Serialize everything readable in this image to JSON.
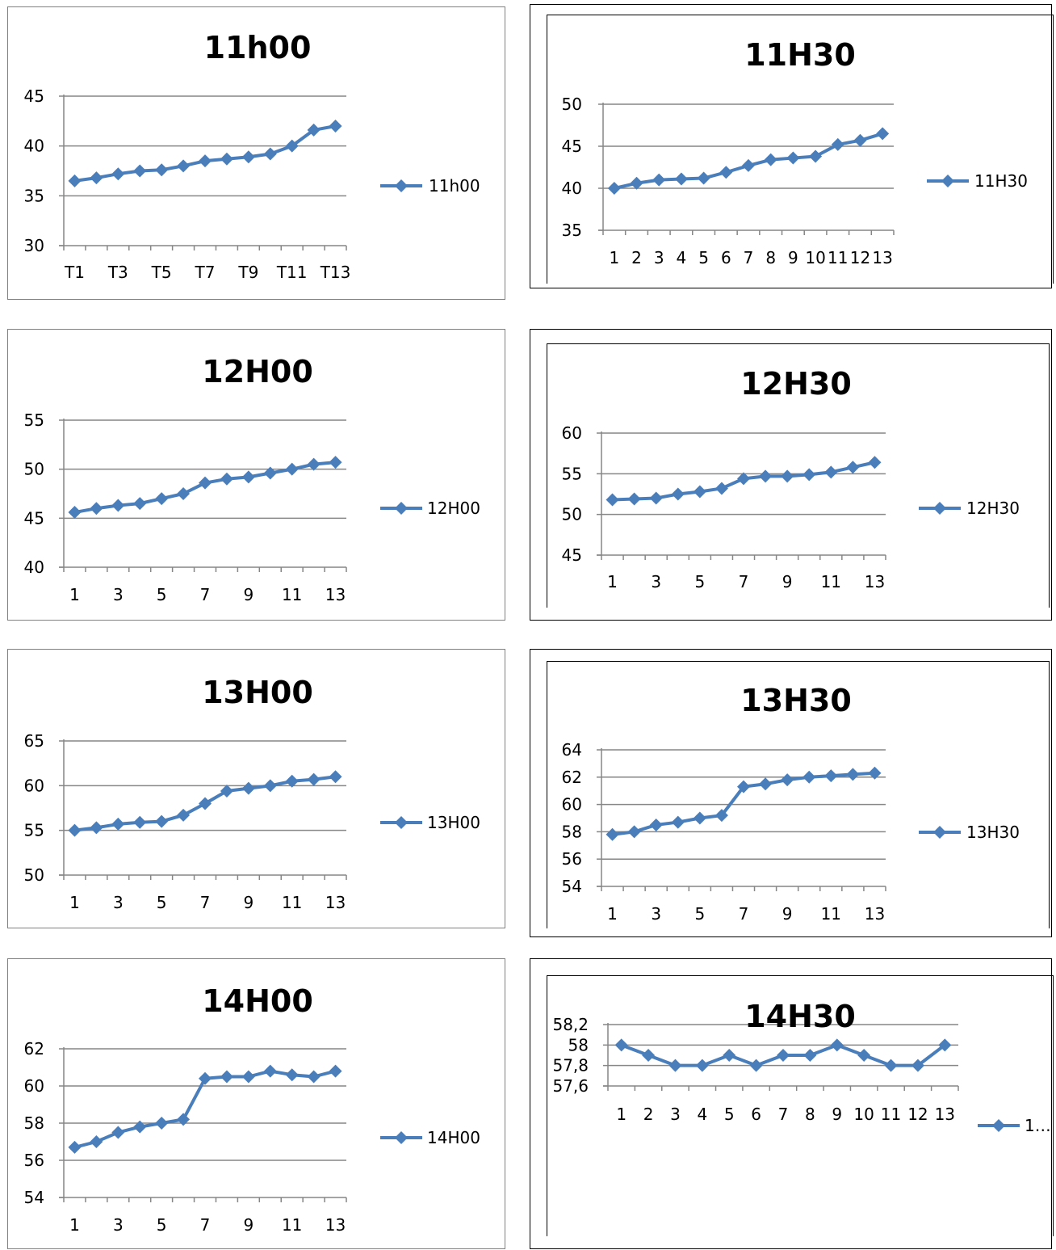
{
  "colors": {
    "series": "#4a7ebb",
    "grid": "#868686",
    "axis": "#868686",
    "text": "#000000",
    "border": "#808080"
  },
  "icons": {
    "marker": "diamond-marker"
  },
  "chart_data": [
    {
      "id": "11h00",
      "type": "line",
      "title": "11h00",
      "x": [
        "T1",
        "T2",
        "T3",
        "T4",
        "T5",
        "T6",
        "T7",
        "T8",
        "T9",
        "T10",
        "T11",
        "T12",
        "T13"
      ],
      "tick_labels": [
        "T1",
        "T3",
        "T5",
        "T7",
        "T9",
        "T11",
        "T13"
      ],
      "series": [
        {
          "name": "11h00",
          "values": [
            36.5,
            36.8,
            37.2,
            37.5,
            37.6,
            38.0,
            38.5,
            38.7,
            38.9,
            39.2,
            40.0,
            41.6,
            42.0
          ]
        }
      ],
      "ylim": [
        30,
        45
      ],
      "yticks": [
        "30",
        "35",
        "40",
        "45"
      ],
      "xlabel": "",
      "ylabel": "",
      "grid": true,
      "legend": "right"
    },
    {
      "id": "11h30",
      "type": "line",
      "title": "11H30",
      "x": [
        "1",
        "2",
        "3",
        "4",
        "5",
        "6",
        "7",
        "8",
        "9",
        "10",
        "11",
        "12",
        "13"
      ],
      "tick_labels": [
        "1",
        "2",
        "3",
        "4",
        "5",
        "6",
        "7",
        "8",
        "9",
        "10",
        "11",
        "12",
        "13"
      ],
      "series": [
        {
          "name": "11H30",
          "values": [
            40.0,
            40.6,
            41.0,
            41.1,
            41.2,
            41.9,
            42.7,
            43.4,
            43.6,
            43.8,
            45.2,
            45.7,
            46.5
          ]
        }
      ],
      "ylim": [
        35,
        50
      ],
      "yticks": [
        "35",
        "40",
        "45",
        "50"
      ],
      "xlabel": "",
      "ylabel": "",
      "grid": true,
      "legend": "right"
    },
    {
      "id": "12h00",
      "type": "line",
      "title": "12H00",
      "x": [
        "1",
        "2",
        "3",
        "4",
        "5",
        "6",
        "7",
        "8",
        "9",
        "10",
        "11",
        "12",
        "13"
      ],
      "tick_labels": [
        "1",
        "3",
        "5",
        "7",
        "9",
        "11",
        "13"
      ],
      "series": [
        {
          "name": "12H00",
          "values": [
            45.6,
            46.0,
            46.3,
            46.5,
            47.0,
            47.5,
            48.6,
            49.0,
            49.2,
            49.6,
            50.0,
            50.5,
            50.7
          ]
        }
      ],
      "ylim": [
        40,
        55
      ],
      "yticks": [
        "40",
        "45",
        "50",
        "55"
      ],
      "xlabel": "",
      "ylabel": "",
      "grid": true,
      "legend": "right"
    },
    {
      "id": "12h30",
      "type": "line",
      "title": "12H30",
      "x": [
        "1",
        "2",
        "3",
        "4",
        "5",
        "6",
        "7",
        "8",
        "9",
        "10",
        "11",
        "12",
        "13"
      ],
      "tick_labels": [
        "1",
        "3",
        "5",
        "7",
        "9",
        "11",
        "13"
      ],
      "series": [
        {
          "name": "12H30",
          "values": [
            51.8,
            51.9,
            52.0,
            52.5,
            52.8,
            53.2,
            54.4,
            54.7,
            54.7,
            54.9,
            55.2,
            55.8,
            56.4
          ]
        }
      ],
      "ylim": [
        45,
        60
      ],
      "yticks": [
        "45",
        "50",
        "55",
        "60"
      ],
      "xlabel": "",
      "ylabel": "",
      "grid": true,
      "legend": "right"
    },
    {
      "id": "13h00",
      "type": "line",
      "title": "13H00",
      "x": [
        "1",
        "2",
        "3",
        "4",
        "5",
        "6",
        "7",
        "8",
        "9",
        "10",
        "11",
        "12",
        "13"
      ],
      "tick_labels": [
        "1",
        "3",
        "5",
        "7",
        "9",
        "11",
        "13"
      ],
      "series": [
        {
          "name": "13H00",
          "values": [
            55.0,
            55.3,
            55.7,
            55.9,
            56.0,
            56.7,
            58.0,
            59.4,
            59.7,
            60.0,
            60.5,
            60.7,
            61.0
          ]
        }
      ],
      "ylim": [
        50,
        65
      ],
      "yticks": [
        "50",
        "55",
        "60",
        "65"
      ],
      "xlabel": "",
      "ylabel": "",
      "grid": true,
      "legend": "right"
    },
    {
      "id": "13h30",
      "type": "line",
      "title": "13H30",
      "x": [
        "1",
        "2",
        "3",
        "4",
        "5",
        "6",
        "7",
        "8",
        "9",
        "10",
        "11",
        "12",
        "13"
      ],
      "tick_labels": [
        "1",
        "3",
        "5",
        "7",
        "9",
        "11",
        "13"
      ],
      "series": [
        {
          "name": "13H30",
          "values": [
            57.8,
            58.0,
            58.5,
            58.7,
            59.0,
            59.2,
            61.3,
            61.5,
            61.8,
            62.0,
            62.1,
            62.2,
            62.3
          ]
        }
      ],
      "ylim": [
        54,
        64
      ],
      "yticks": [
        "54",
        "56",
        "58",
        "60",
        "62",
        "64"
      ],
      "xlabel": "",
      "ylabel": "",
      "grid": true,
      "legend": "right"
    },
    {
      "id": "14h00",
      "type": "line",
      "title": "14H00",
      "x": [
        "1",
        "2",
        "3",
        "4",
        "5",
        "6",
        "7",
        "8",
        "9",
        "10",
        "11",
        "12",
        "13"
      ],
      "tick_labels": [
        "1",
        "3",
        "5",
        "7",
        "9",
        "11",
        "13"
      ],
      "series": [
        {
          "name": "14H00",
          "values": [
            56.7,
            57.0,
            57.5,
            57.8,
            58.0,
            58.2,
            60.4,
            60.5,
            60.5,
            60.8,
            60.6,
            60.5,
            60.8
          ]
        }
      ],
      "ylim": [
        54,
        62
      ],
      "yticks": [
        "54",
        "56",
        "58",
        "60",
        "62"
      ],
      "xlabel": "",
      "ylabel": "",
      "grid": true,
      "legend": "right"
    },
    {
      "id": "14h30",
      "type": "line",
      "title": "14H30",
      "x": [
        "1",
        "2",
        "3",
        "4",
        "5",
        "6",
        "7",
        "8",
        "9",
        "10",
        "11",
        "12",
        "13"
      ],
      "tick_labels": [
        "1",
        "2",
        "3",
        "4",
        "5",
        "6",
        "7",
        "8",
        "9",
        "10",
        "11",
        "12",
        "13"
      ],
      "series": [
        {
          "name": "1…",
          "values": [
            58.0,
            57.9,
            57.8,
            57.8,
            57.9,
            57.8,
            57.9,
            57.9,
            58.0,
            57.9,
            57.8,
            57.8,
            58.0
          ]
        }
      ],
      "ylim": [
        57.6,
        58.2
      ],
      "yticks": [
        "57,6",
        "57,8",
        "58",
        "58,2"
      ],
      "xlabel": "",
      "ylabel": "",
      "grid": true,
      "legend": "bottom-right"
    }
  ]
}
